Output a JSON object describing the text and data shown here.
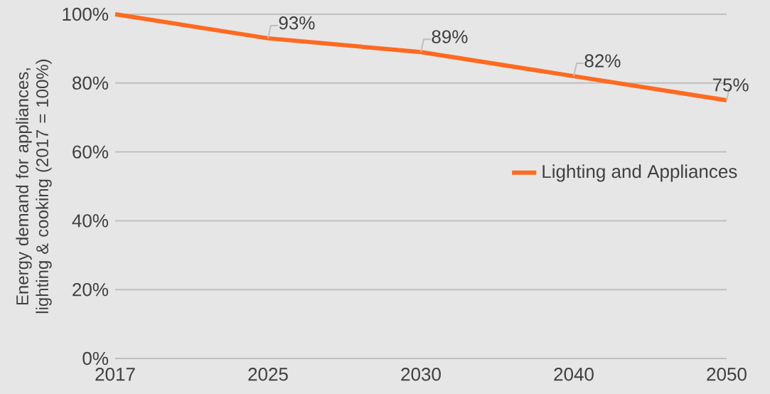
{
  "chart_data": {
    "type": "line",
    "ylabel": "Energy demand for appliances, lighting & cooking (2017 = 100%)",
    "categories": [
      "2017",
      "2025",
      "2030",
      "2040",
      "2050"
    ],
    "series": [
      {
        "name": "Lighting and Appliances",
        "color": "#fe6a21",
        "values": [
          100,
          93,
          89,
          82,
          75
        ],
        "value_labels": [
          null,
          "93%",
          "89%",
          "82%",
          "75%"
        ]
      }
    ],
    "ylim": [
      0,
      100
    ],
    "yticks": [
      {
        "value": 0,
        "label": "0%"
      },
      {
        "value": 20,
        "label": "20%"
      },
      {
        "value": 40,
        "label": "40%"
      },
      {
        "value": 60,
        "label": "60%"
      },
      {
        "value": 80,
        "label": "80%"
      },
      {
        "value": 100,
        "label": "100%"
      }
    ],
    "grid": "y",
    "legend": "right",
    "marker": "none",
    "line_style": "solid"
  }
}
